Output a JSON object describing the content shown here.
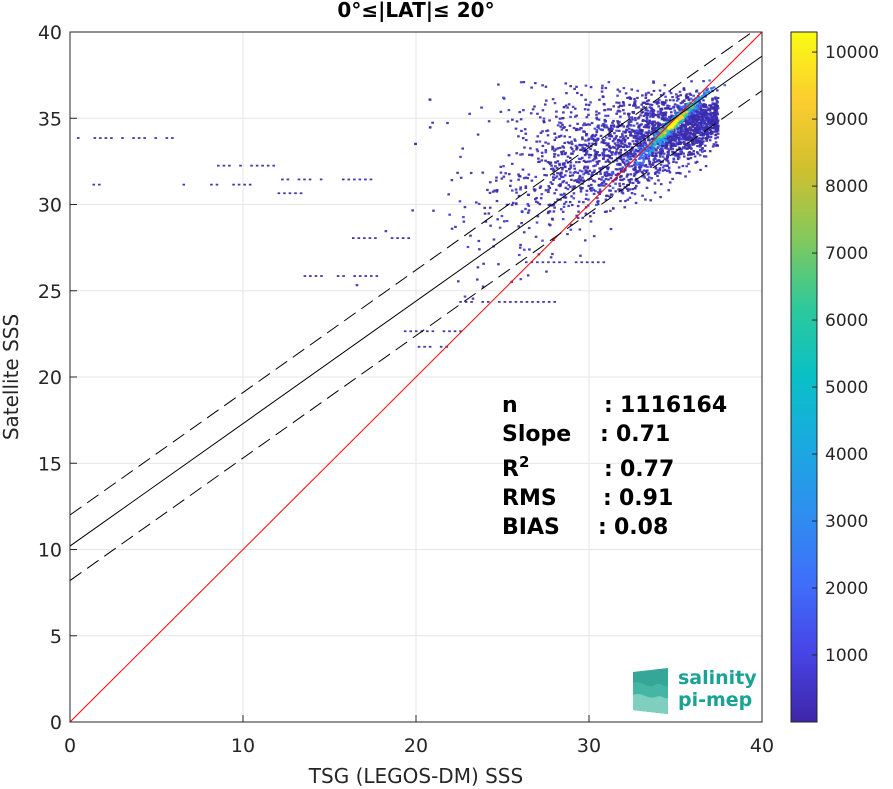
{
  "chart_data": {
    "type": "heatmap",
    "title": "0°≤|LAT|≤ 20°",
    "xlabel": "TSG (LEGOS-DM) SSS",
    "ylabel": "Satellite SSS",
    "xlim": [
      0,
      40
    ],
    "ylim": [
      0,
      40
    ],
    "xticks": [
      "0",
      "10",
      "20",
      "30",
      "40"
    ],
    "yticks": [
      "0",
      "5",
      "10",
      "15",
      "20",
      "25",
      "30",
      "35",
      "40"
    ],
    "grid": true,
    "colorbar": {
      "range": [
        0,
        10300
      ],
      "ticks": [
        "1000",
        "2000",
        "3000",
        "4000",
        "5000",
        "6000",
        "7000",
        "8000",
        "9000",
        "10000"
      ],
      "colormap": "parula"
    },
    "lines": {
      "identity": {
        "slope": 1,
        "intercept": 0,
        "color": "#ff0000"
      },
      "fit": {
        "slope": 0.71,
        "intercept": 10.2,
        "color": "#000000"
      },
      "fit_upper": {
        "slope": 0.71,
        "intercept": 12.0,
        "color": "#000000",
        "dash": true
      },
      "fit_lower": {
        "slope": 0.71,
        "intercept": 8.2,
        "color": "#000000",
        "dash": true
      }
    },
    "density_peak": {
      "x": 34.8,
      "y": 34.6,
      "count": 10300
    },
    "stats": [
      {
        "label": "n",
        "sep": ": ",
        "value": "1116164"
      },
      {
        "label": "Slope",
        "sep": ": ",
        "value": "0.71"
      },
      {
        "label": "R",
        "sup": "2",
        "sep": ": ",
        "value": "0.77"
      },
      {
        "label": "RMS",
        "sep": ": ",
        "value": "0.91"
      },
      {
        "label": "BIAS",
        "sep": ": ",
        "value": "0.08"
      }
    ]
  },
  "logo": {
    "line1": "salinity",
    "line2": "pi-mep"
  }
}
